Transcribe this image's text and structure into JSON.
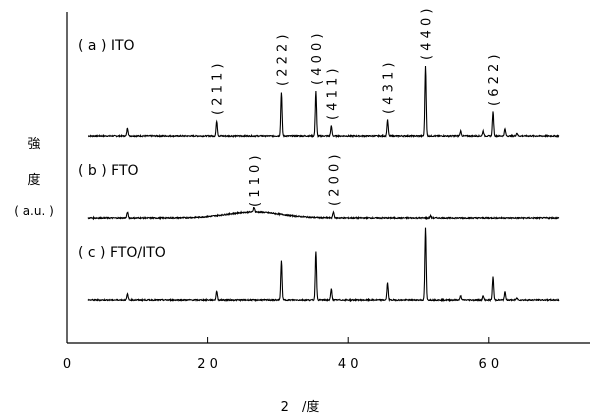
{
  "chart_data": {
    "type": "line",
    "title": "",
    "xlabel": "2　/度",
    "ylabel_lines": [
      "強",
      "度",
      "( a.u. )"
    ],
    "xlim": [
      0,
      75
    ],
    "x_ticks": [
      {
        "value": 0,
        "label": "0"
      },
      {
        "value": 20,
        "label": "2 0"
      },
      {
        "value": 40,
        "label": "4 0"
      },
      {
        "value": 60,
        "label": "6 0"
      }
    ],
    "grid": false,
    "legend": "none",
    "series": [
      {
        "name": "( a ) ITO",
        "x_range": [
          3,
          70
        ],
        "peaks": [
          {
            "x": 8.6,
            "h": 8
          },
          {
            "x": 21.3,
            "h": 15,
            "label": "( 2 1 1 )"
          },
          {
            "x": 30.5,
            "h": 44,
            "label": "( 2 2 2 )"
          },
          {
            "x": 35.4,
            "h": 45,
            "label": "( 4 0 0 )"
          },
          {
            "x": 37.6,
            "h": 10,
            "label": "( 4 1 1 )"
          },
          {
            "x": 45.6,
            "h": 16,
            "label": "( 4 3 1 )"
          },
          {
            "x": 51.0,
            "h": 70,
            "label": "( 4 4 0 )"
          },
          {
            "x": 56.0,
            "h": 5
          },
          {
            "x": 59.2,
            "h": 5
          },
          {
            "x": 60.6,
            "h": 24,
            "label": "( 6 2 2 )"
          },
          {
            "x": 62.3,
            "h": 7
          },
          {
            "x": 64.0,
            "h": 3
          }
        ]
      },
      {
        "name": "( b ) FTO",
        "x_range": [
          3,
          70
        ],
        "hump": {
          "center": 26.6,
          "width": 5.5,
          "h": 6
        },
        "peaks": [
          {
            "x": 8.6,
            "h": 6
          },
          {
            "x": 26.6,
            "h": 5,
            "label": "( 1 1 0 )"
          },
          {
            "x": 37.9,
            "h": 6,
            "label": "( 2 0 0 )"
          },
          {
            "x": 51.7,
            "h": 2
          }
        ]
      },
      {
        "name": "( c ) FTO/ITO",
        "x_range": [
          3,
          70
        ],
        "peaks": [
          {
            "x": 8.6,
            "h": 6
          },
          {
            "x": 21.3,
            "h": 9
          },
          {
            "x": 30.5,
            "h": 39
          },
          {
            "x": 35.4,
            "h": 49
          },
          {
            "x": 37.6,
            "h": 11
          },
          {
            "x": 45.6,
            "h": 17
          },
          {
            "x": 51.0,
            "h": 72
          },
          {
            "x": 56.0,
            "h": 4
          },
          {
            "x": 59.2,
            "h": 4
          },
          {
            "x": 60.6,
            "h": 23
          },
          {
            "x": 62.3,
            "h": 8
          },
          {
            "x": 64.0,
            "h": 2
          }
        ]
      }
    ]
  }
}
